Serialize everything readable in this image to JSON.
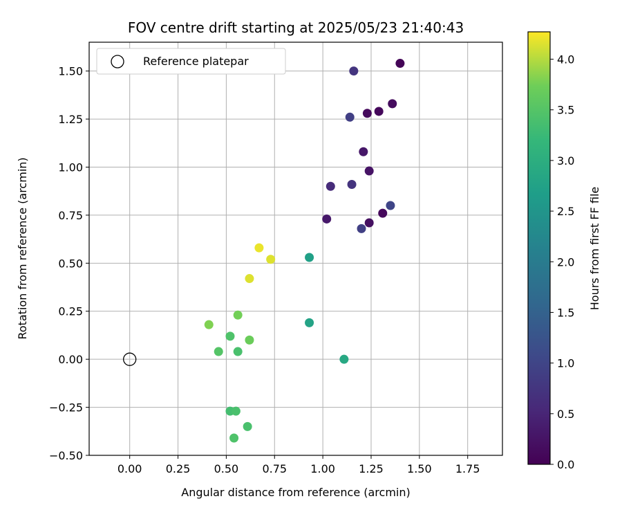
{
  "chart_data": {
    "type": "scatter",
    "title": "FOV centre drift starting at 2025/05/23 21:40:43",
    "xlabel": "Angular distance from reference (arcmin)",
    "ylabel": "Rotation from reference (arcmin)",
    "xlim": [
      -0.21,
      1.93
    ],
    "ylim": [
      -0.5,
      1.65
    ],
    "xticks": [
      0.0,
      0.25,
      0.5,
      0.75,
      1.0,
      1.25,
      1.5,
      1.75
    ],
    "xtick_labels": [
      "0.00",
      "0.25",
      "0.50",
      "0.75",
      "1.00",
      "1.25",
      "1.50",
      "1.75"
    ],
    "yticks": [
      -0.5,
      -0.25,
      0.0,
      0.25,
      0.5,
      0.75,
      1.0,
      1.25,
      1.5
    ],
    "ytick_labels": [
      "−0.50",
      "−0.25",
      "0.00",
      "0.25",
      "0.50",
      "0.75",
      "1.00",
      "1.25",
      "1.50"
    ],
    "grid": true,
    "legend": {
      "position": "top-left",
      "entries": [
        "Reference platepar"
      ]
    },
    "reference_point": {
      "x": 0.0,
      "y": 0.0
    },
    "colorbar": {
      "label": "Hours from first FF file",
      "range": [
        0.0,
        4.27
      ],
      "ticks": [
        0.0,
        0.5,
        1.0,
        1.5,
        2.0,
        2.5,
        3.0,
        3.5,
        4.0
      ],
      "tick_labels": [
        "0.0",
        "0.5",
        "1.0",
        "1.5",
        "2.0",
        "2.5",
        "3.0",
        "3.5",
        "4.0"
      ],
      "colormap": "viridis"
    },
    "points": [
      {
        "x": 1.4,
        "y": 1.54,
        "hours": 0.05
      },
      {
        "x": 1.36,
        "y": 1.33,
        "hours": 0.15
      },
      {
        "x": 1.29,
        "y": 1.29,
        "hours": 0.1
      },
      {
        "x": 1.23,
        "y": 1.28,
        "hours": 0.12
      },
      {
        "x": 1.31,
        "y": 0.76,
        "hours": 0.1
      },
      {
        "x": 1.24,
        "y": 0.71,
        "hours": 0.2
      },
      {
        "x": 1.24,
        "y": 0.98,
        "hours": 0.25
      },
      {
        "x": 1.21,
        "y": 1.08,
        "hours": 0.3
      },
      {
        "x": 1.02,
        "y": 0.73,
        "hours": 0.32
      },
      {
        "x": 1.04,
        "y": 0.9,
        "hours": 0.6
      },
      {
        "x": 1.15,
        "y": 0.91,
        "hours": 0.72
      },
      {
        "x": 1.16,
        "y": 1.5,
        "hours": 0.75
      },
      {
        "x": 1.14,
        "y": 1.26,
        "hours": 0.9
      },
      {
        "x": 1.2,
        "y": 0.68,
        "hours": 0.92
      },
      {
        "x": 1.35,
        "y": 0.8,
        "hours": 1.0
      },
      {
        "x": 0.93,
        "y": 0.53,
        "hours": 2.72
      },
      {
        "x": 0.93,
        "y": 0.19,
        "hours": 2.78
      },
      {
        "x": 1.11,
        "y": 0.0,
        "hours": 2.88
      },
      {
        "x": 0.52,
        "y": -0.27,
        "hours": 3.35
      },
      {
        "x": 0.55,
        "y": -0.27,
        "hours": 3.4
      },
      {
        "x": 0.54,
        "y": -0.41,
        "hours": 3.45
      },
      {
        "x": 0.61,
        "y": -0.35,
        "hours": 3.4
      },
      {
        "x": 0.46,
        "y": 0.04,
        "hours": 3.5
      },
      {
        "x": 0.56,
        "y": 0.04,
        "hours": 3.4
      },
      {
        "x": 0.52,
        "y": 0.12,
        "hours": 3.45
      },
      {
        "x": 0.62,
        "y": 0.1,
        "hours": 3.7
      },
      {
        "x": 0.56,
        "y": 0.23,
        "hours": 3.75
      },
      {
        "x": 0.41,
        "y": 0.18,
        "hours": 3.8
      },
      {
        "x": 0.62,
        "y": 0.42,
        "hours": 4.15
      },
      {
        "x": 0.67,
        "y": 0.58,
        "hours": 4.2
      },
      {
        "x": 0.73,
        "y": 0.52,
        "hours": 4.15
      }
    ]
  }
}
